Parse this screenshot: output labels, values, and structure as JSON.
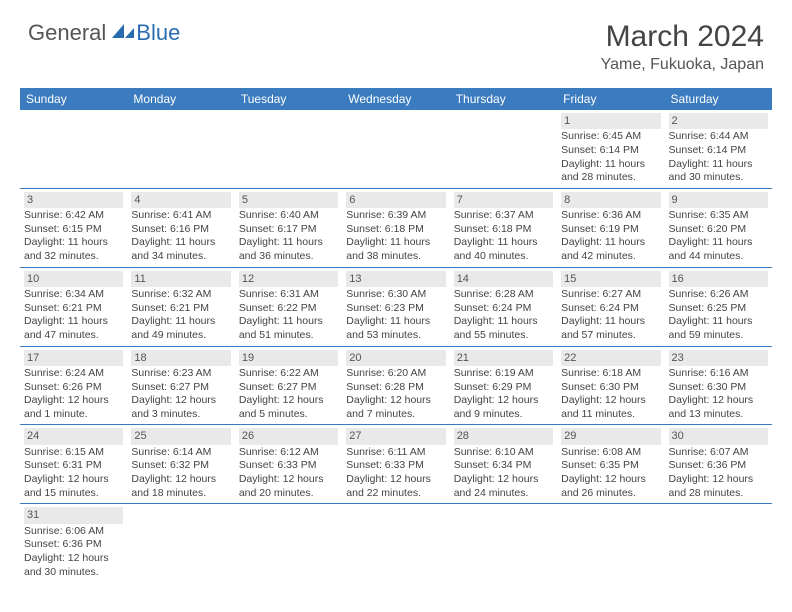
{
  "logo": {
    "general": "General",
    "blue": "Blue"
  },
  "title": "March 2024",
  "location": "Yame, Fukuoka, Japan",
  "colors": {
    "header_bg": "#3b7bbf",
    "header_text": "#ffffff",
    "border": "#3b7bbf",
    "daynum_bg": "#e9e9e9",
    "body_text": "#444444",
    "logo_gray": "#555555",
    "logo_blue": "#2a6cb0"
  },
  "week_headers": [
    "Sunday",
    "Monday",
    "Tuesday",
    "Wednesday",
    "Thursday",
    "Friday",
    "Saturday"
  ],
  "weeks": [
    [
      null,
      null,
      null,
      null,
      null,
      {
        "day": "1",
        "sunrise": "Sunrise: 6:45 AM",
        "sunset": "Sunset: 6:14 PM",
        "dl1": "Daylight: 11 hours",
        "dl2": "and 28 minutes."
      },
      {
        "day": "2",
        "sunrise": "Sunrise: 6:44 AM",
        "sunset": "Sunset: 6:14 PM",
        "dl1": "Daylight: 11 hours",
        "dl2": "and 30 minutes."
      }
    ],
    [
      {
        "day": "3",
        "sunrise": "Sunrise: 6:42 AM",
        "sunset": "Sunset: 6:15 PM",
        "dl1": "Daylight: 11 hours",
        "dl2": "and 32 minutes."
      },
      {
        "day": "4",
        "sunrise": "Sunrise: 6:41 AM",
        "sunset": "Sunset: 6:16 PM",
        "dl1": "Daylight: 11 hours",
        "dl2": "and 34 minutes."
      },
      {
        "day": "5",
        "sunrise": "Sunrise: 6:40 AM",
        "sunset": "Sunset: 6:17 PM",
        "dl1": "Daylight: 11 hours",
        "dl2": "and 36 minutes."
      },
      {
        "day": "6",
        "sunrise": "Sunrise: 6:39 AM",
        "sunset": "Sunset: 6:18 PM",
        "dl1": "Daylight: 11 hours",
        "dl2": "and 38 minutes."
      },
      {
        "day": "7",
        "sunrise": "Sunrise: 6:37 AM",
        "sunset": "Sunset: 6:18 PM",
        "dl1": "Daylight: 11 hours",
        "dl2": "and 40 minutes."
      },
      {
        "day": "8",
        "sunrise": "Sunrise: 6:36 AM",
        "sunset": "Sunset: 6:19 PM",
        "dl1": "Daylight: 11 hours",
        "dl2": "and 42 minutes."
      },
      {
        "day": "9",
        "sunrise": "Sunrise: 6:35 AM",
        "sunset": "Sunset: 6:20 PM",
        "dl1": "Daylight: 11 hours",
        "dl2": "and 44 minutes."
      }
    ],
    [
      {
        "day": "10",
        "sunrise": "Sunrise: 6:34 AM",
        "sunset": "Sunset: 6:21 PM",
        "dl1": "Daylight: 11 hours",
        "dl2": "and 47 minutes."
      },
      {
        "day": "11",
        "sunrise": "Sunrise: 6:32 AM",
        "sunset": "Sunset: 6:21 PM",
        "dl1": "Daylight: 11 hours",
        "dl2": "and 49 minutes."
      },
      {
        "day": "12",
        "sunrise": "Sunrise: 6:31 AM",
        "sunset": "Sunset: 6:22 PM",
        "dl1": "Daylight: 11 hours",
        "dl2": "and 51 minutes."
      },
      {
        "day": "13",
        "sunrise": "Sunrise: 6:30 AM",
        "sunset": "Sunset: 6:23 PM",
        "dl1": "Daylight: 11 hours",
        "dl2": "and 53 minutes."
      },
      {
        "day": "14",
        "sunrise": "Sunrise: 6:28 AM",
        "sunset": "Sunset: 6:24 PM",
        "dl1": "Daylight: 11 hours",
        "dl2": "and 55 minutes."
      },
      {
        "day": "15",
        "sunrise": "Sunrise: 6:27 AM",
        "sunset": "Sunset: 6:24 PM",
        "dl1": "Daylight: 11 hours",
        "dl2": "and 57 minutes."
      },
      {
        "day": "16",
        "sunrise": "Sunrise: 6:26 AM",
        "sunset": "Sunset: 6:25 PM",
        "dl1": "Daylight: 11 hours",
        "dl2": "and 59 minutes."
      }
    ],
    [
      {
        "day": "17",
        "sunrise": "Sunrise: 6:24 AM",
        "sunset": "Sunset: 6:26 PM",
        "dl1": "Daylight: 12 hours",
        "dl2": "and 1 minute."
      },
      {
        "day": "18",
        "sunrise": "Sunrise: 6:23 AM",
        "sunset": "Sunset: 6:27 PM",
        "dl1": "Daylight: 12 hours",
        "dl2": "and 3 minutes."
      },
      {
        "day": "19",
        "sunrise": "Sunrise: 6:22 AM",
        "sunset": "Sunset: 6:27 PM",
        "dl1": "Daylight: 12 hours",
        "dl2": "and 5 minutes."
      },
      {
        "day": "20",
        "sunrise": "Sunrise: 6:20 AM",
        "sunset": "Sunset: 6:28 PM",
        "dl1": "Daylight: 12 hours",
        "dl2": "and 7 minutes."
      },
      {
        "day": "21",
        "sunrise": "Sunrise: 6:19 AM",
        "sunset": "Sunset: 6:29 PM",
        "dl1": "Daylight: 12 hours",
        "dl2": "and 9 minutes."
      },
      {
        "day": "22",
        "sunrise": "Sunrise: 6:18 AM",
        "sunset": "Sunset: 6:30 PM",
        "dl1": "Daylight: 12 hours",
        "dl2": "and 11 minutes."
      },
      {
        "day": "23",
        "sunrise": "Sunrise: 6:16 AM",
        "sunset": "Sunset: 6:30 PM",
        "dl1": "Daylight: 12 hours",
        "dl2": "and 13 minutes."
      }
    ],
    [
      {
        "day": "24",
        "sunrise": "Sunrise: 6:15 AM",
        "sunset": "Sunset: 6:31 PM",
        "dl1": "Daylight: 12 hours",
        "dl2": "and 15 minutes."
      },
      {
        "day": "25",
        "sunrise": "Sunrise: 6:14 AM",
        "sunset": "Sunset: 6:32 PM",
        "dl1": "Daylight: 12 hours",
        "dl2": "and 18 minutes."
      },
      {
        "day": "26",
        "sunrise": "Sunrise: 6:12 AM",
        "sunset": "Sunset: 6:33 PM",
        "dl1": "Daylight: 12 hours",
        "dl2": "and 20 minutes."
      },
      {
        "day": "27",
        "sunrise": "Sunrise: 6:11 AM",
        "sunset": "Sunset: 6:33 PM",
        "dl1": "Daylight: 12 hours",
        "dl2": "and 22 minutes."
      },
      {
        "day": "28",
        "sunrise": "Sunrise: 6:10 AM",
        "sunset": "Sunset: 6:34 PM",
        "dl1": "Daylight: 12 hours",
        "dl2": "and 24 minutes."
      },
      {
        "day": "29",
        "sunrise": "Sunrise: 6:08 AM",
        "sunset": "Sunset: 6:35 PM",
        "dl1": "Daylight: 12 hours",
        "dl2": "and 26 minutes."
      },
      {
        "day": "30",
        "sunrise": "Sunrise: 6:07 AM",
        "sunset": "Sunset: 6:36 PM",
        "dl1": "Daylight: 12 hours",
        "dl2": "and 28 minutes."
      }
    ],
    [
      {
        "day": "31",
        "sunrise": "Sunrise: 6:06 AM",
        "sunset": "Sunset: 6:36 PM",
        "dl1": "Daylight: 12 hours",
        "dl2": "and 30 minutes."
      },
      null,
      null,
      null,
      null,
      null,
      null
    ]
  ]
}
